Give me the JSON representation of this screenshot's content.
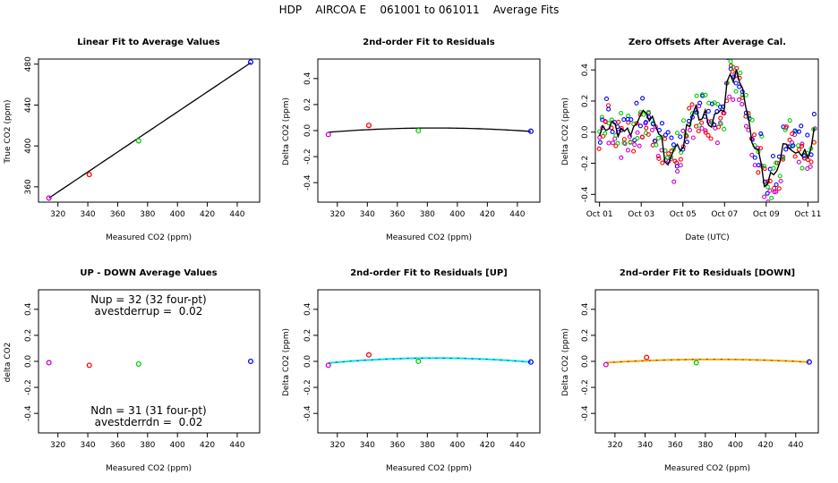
{
  "title": "HDP    AIRCOA E    061001 to 061011    Average Fits",
  "colors": {
    "purple": "#cc00cc",
    "red": "#ff0000",
    "green": "#00cc00",
    "blue": "#0000ff",
    "fit_black": "#000000",
    "fit_cyan": "#00e5ee",
    "fit_orange": "#ffa500"
  },
  "chart_data": [
    {
      "id": "p1",
      "type": "scatter",
      "title": "Linear Fit to Average Values",
      "xlabel": "Measured CO2 (ppm)",
      "ylabel": "True CO2 (ppm)",
      "xlim": [
        307,
        455
      ],
      "ylim": [
        345,
        485
      ],
      "xticks": [
        320,
        340,
        360,
        380,
        400,
        420,
        440
      ],
      "yticks": [
        360,
        400,
        440,
        480
      ],
      "points": [
        {
          "x": 314,
          "y": 349,
          "color": "purple"
        },
        {
          "x": 341,
          "y": 372,
          "color": "red"
        },
        {
          "x": 374,
          "y": 405,
          "color": "green"
        },
        {
          "x": 449,
          "y": 482,
          "color": "blue"
        }
      ],
      "fit": {
        "kind": "linear",
        "slope": 0.98,
        "intercept": 41.3,
        "xrange": [
          314,
          449
        ],
        "color": "fit_black"
      }
    },
    {
      "id": "p2",
      "type": "scatter",
      "title": "2nd-order Fit to Residuals",
      "xlabel": "Measured CO2 (ppm)",
      "ylabel": "Delta CO2 (ppm)",
      "xlim": [
        307,
        455
      ],
      "ylim": [
        -0.55,
        0.55
      ],
      "xticks": [
        320,
        340,
        360,
        380,
        400,
        420,
        440
      ],
      "yticks": [
        -0.4,
        -0.2,
        0.0,
        0.2,
        0.4
      ],
      "points": [
        {
          "x": 314,
          "y": -0.03,
          "color": "purple"
        },
        {
          "x": 341,
          "y": 0.04,
          "color": "red"
        },
        {
          "x": 374,
          "y": 0.0,
          "color": "green"
        },
        {
          "x": 449,
          "y": -0.005,
          "color": "blue"
        }
      ],
      "fit": {
        "kind": "quadratic",
        "vertex_x": 385,
        "peak": 0.02,
        "a": -6.5e-06,
        "xrange": [
          314,
          449
        ],
        "color": "fit_black"
      }
    },
    {
      "id": "p3",
      "type": "scatter",
      "title": "Zero Offsets After Average Cal.",
      "xlabel": "Date (UTC)",
      "ylabel": "Delta CO2 (ppm)",
      "xlim": [
        -0.2,
        10.5
      ],
      "ylim": [
        -0.45,
        0.47
      ],
      "xticks": [
        0,
        2,
        4,
        6,
        8,
        10
      ],
      "xtick_labels": [
        "Oct 01",
        "Oct 03",
        "Oct 05",
        "Oct 07",
        "Oct 09",
        "Oct 11"
      ],
      "yticks": [
        -0.4,
        -0.2,
        0.0,
        0.2,
        0.4
      ],
      "series_colors": [
        "purple",
        "red",
        "green",
        "blue"
      ],
      "mean_color": "fit_black",
      "time_range": [
        0,
        10.3
      ],
      "sample_count": 70
    },
    {
      "id": "p4",
      "type": "scatter",
      "title": "UP - DOWN Average Values",
      "xlabel": "Measured CO2 (ppm)",
      "ylabel": "delta CO2",
      "xlim": [
        307,
        455
      ],
      "ylim": [
        -0.55,
        0.55
      ],
      "xticks": [
        320,
        340,
        360,
        380,
        400,
        420,
        440
      ],
      "yticks": [
        -0.4,
        -0.2,
        0.0,
        0.2,
        0.4
      ],
      "points": [
        {
          "x": 314,
          "y": -0.01,
          "color": "purple"
        },
        {
          "x": 341,
          "y": -0.03,
          "color": "red"
        },
        {
          "x": 374,
          "y": -0.02,
          "color": "green"
        },
        {
          "x": 449,
          "y": 0.0,
          "color": "blue"
        }
      ],
      "annotations": [
        "Nup = 32 (32 four-pt)",
        "avestderrup =  0.02",
        "Ndn = 31 (31 four-pt)",
        "avestderrdn =  0.02"
      ]
    },
    {
      "id": "p5",
      "type": "scatter",
      "title": "2nd-order Fit to Residuals [UP]",
      "xlabel": "Measured CO2 (ppm)",
      "ylabel": "Delta CO2 (ppm)",
      "xlim": [
        307,
        455
      ],
      "ylim": [
        -0.55,
        0.55
      ],
      "xticks": [
        320,
        340,
        360,
        380,
        400,
        420,
        440
      ],
      "yticks": [
        -0.4,
        -0.2,
        0.0,
        0.2,
        0.4
      ],
      "points": [
        {
          "x": 314,
          "y": -0.03,
          "color": "purple"
        },
        {
          "x": 341,
          "y": 0.05,
          "color": "red"
        },
        {
          "x": 374,
          "y": 0.0,
          "color": "green"
        },
        {
          "x": 449,
          "y": -0.005,
          "color": "blue"
        }
      ],
      "fit": {
        "kind": "quadratic",
        "vertex_x": 385,
        "peak": 0.025,
        "a": -7.5e-06,
        "xrange": [
          314,
          449
        ],
        "color": "fit_cyan"
      }
    },
    {
      "id": "p6",
      "type": "scatter",
      "title": "2nd-order Fit to Residuals [DOWN]",
      "xlabel": "Measured CO2 (ppm)",
      "ylabel": "Delta CO2 (ppm)",
      "xlim": [
        307,
        455
      ],
      "ylim": [
        -0.55,
        0.55
      ],
      "xticks": [
        320,
        340,
        360,
        380,
        400,
        420,
        440
      ],
      "yticks": [
        -0.4,
        -0.2,
        0.0,
        0.2,
        0.4
      ],
      "points": [
        {
          "x": 314,
          "y": -0.025,
          "color": "purple"
        },
        {
          "x": 341,
          "y": 0.03,
          "color": "red"
        },
        {
          "x": 374,
          "y": -0.01,
          "color": "green"
        },
        {
          "x": 449,
          "y": -0.005,
          "color": "blue"
        }
      ],
      "fit": {
        "kind": "quadratic",
        "vertex_x": 385,
        "peak": 0.015,
        "a": -5e-06,
        "xrange": [
          314,
          449
        ],
        "color": "fit_orange"
      }
    }
  ]
}
